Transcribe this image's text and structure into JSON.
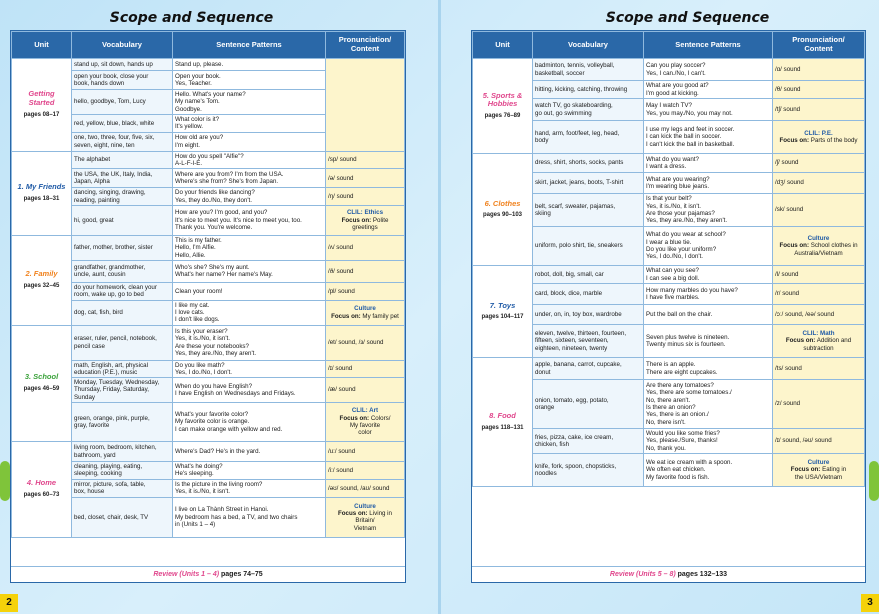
{
  "left": {
    "title": "Scope and Sequence",
    "headers": [
      "Unit",
      "Vocabulary",
      "Sentence Patterns",
      "Pronunciation/\nContent"
    ],
    "page_number": "2",
    "review": {
      "label": "Review (Units 1 – 4)",
      "pages": "pages 74–75"
    },
    "units": [
      {
        "name": "Getting\nStarted",
        "pages": "pages 08–17",
        "color": "#e0468c",
        "rows": [
          {
            "voc": "stand up, sit down, hands up",
            "sent": "Stand up, please.",
            "pron": null
          },
          {
            "voc": "open your book, close your\nbook, hands down",
            "sent": "Open your book.\nYes, Teacher.",
            "pron": null
          },
          {
            "voc": "hello, goodbye, Tom, Lucy",
            "sent": "Hello. What's your name?\nMy name's Tom.\nGoodbye.",
            "pron": null
          },
          {
            "voc": "red, yellow, blue, black, white",
            "sent": "What color is it?\nIt's yellow.",
            "pron": null
          },
          {
            "voc": "one, two, three, four, five, six,\nseven, eight, nine, ten",
            "sent": "How old are you?\nI'm eight.",
            "pron": null
          }
        ]
      },
      {
        "name": "1. My Friends",
        "pages": "pages 18–31",
        "color": "#1f5aa6",
        "rows": [
          {
            "voc": "The alphabet",
            "sent": "How do you spell \"Alfie\"?\nA-L-F-I-E.",
            "pron": "/sp/ sound"
          },
          {
            "voc": "the USA, the UK, Italy, India,\nJapan, Alpha",
            "sent": "Where are you from?     I'm from the USA.\nWhere's she from?       She's from Japan.",
            "pron": "/ə/ sound"
          },
          {
            "voc": "dancing, singing, drawing,\nreading, painting",
            "sent": "Do your friends like dancing?\nYes, they do./No, they don't.",
            "pron": "/ŋ/ sound"
          },
          {
            "voc": "hi, good, great",
            "sent": "How are you?                 I'm good, and you?\nIt's nice to meet you.      It's nice to meet you, too.\nThank you.                     You're welcome.",
            "pron": {
              "k1": "CLIL: Ethics",
              "k2": "Focus on:",
              "t": "Polite\ngreetings"
            }
          }
        ]
      },
      {
        "name": "2. Family",
        "pages": "pages 32–45",
        "color": "#f0821e",
        "rows": [
          {
            "voc": "father, mother, brother, sister",
            "sent": "This is my father.\nHello, I'm Alfie.\nHello, Allie.",
            "pron": "/ʌ/ sound"
          },
          {
            "voc": "grandfather, grandmother,\nuncle, aunt, cousin",
            "sent": "Who's she?                 She's my aunt.\nWhat's her name?       Her name's May.",
            "pron": "/ð/ sound"
          },
          {
            "voc": "do your homework, clean your\nroom, wake up, go to bed",
            "sent": "Clean your room!",
            "pron": "/pl/ sound"
          },
          {
            "voc": "dog, cat, fish, bird",
            "sent": "I like my cat.\nI love cats.\nI don't like dogs.",
            "pron": {
              "k1": "Culture",
              "k2": "Focus on:",
              "t": "My family pet"
            }
          }
        ]
      },
      {
        "name": "3. School",
        "pages": "pages 46–59",
        "color": "#3aa23a",
        "rows": [
          {
            "voc": "eraser, ruler, pencil, notebook,\npencil case",
            "sent": "Is this your eraser?\nYes, it is./No, it isn't.\nAre these your notebooks?\nYes, they are./No, they aren't.",
            "pron": "/et/ sound, /ɜ/ sound"
          },
          {
            "voc": "math, English, art, physical\neducation (P.E.), music",
            "sent": "Do you like math?\nYes, I do./No, I don't.",
            "pron": "/ɪ/ sound"
          },
          {
            "voc": "Monday, Tuesday, Wednesday,\nThursday, Friday, Saturday,\nSunday",
            "sent": "When do you have English?\nI have English on Wednesdays and Fridays.",
            "pron": "/æ/ sound"
          },
          {
            "voc": "green, orange, pink, purple,\ngray, favorite",
            "sent": "What's your favorite color?\nMy favorite color is orange.\nI can make orange with yellow and red.",
            "pron": {
              "k1": "CLIL: Art",
              "k2": "Focus on:",
              "t": "Colors/\nMy favorite\ncolor"
            }
          }
        ]
      },
      {
        "name": "4. Home",
        "pages": "pages 60–73",
        "color": "#e0468c",
        "rows": [
          {
            "voc": "living room, bedroom, kitchen,\nbathroom, yard",
            "sent": "Where's Dad?              He's in the yard.",
            "pron": "/u:/ sound"
          },
          {
            "voc": "cleaning, playing, eating,\nsleeping, cooking",
            "sent": "What's he doing?\nHe's sleeping.",
            "pron": "/i:/ sound"
          },
          {
            "voc": "mirror, picture, sofa, table,\nbox, house",
            "sent": "Is the picture in the living room?\nYes, it is./No, it isn't.",
            "pron": "/əʊ/ sound, /aʊ/ sound"
          },
          {
            "voc": "bed, closet, chair, desk, TV",
            "sent": "I live on La Thành Street in Hanoi.\nMy bedroom has a bed, a TV, and two chairs\nin (Units 1 – 4)",
            "pron": {
              "k1": "Culture",
              "k2": "Focus on:",
              "t": "Living in\nBritain/\nVietnam"
            }
          }
        ]
      }
    ]
  },
  "right": {
    "title": "Scope and Sequence",
    "headers": [
      "Unit",
      "Vocabulary",
      "Sentence Patterns",
      "Pronunciation/\nContent"
    ],
    "page_number": "3",
    "review": {
      "label": "Review (Units 5 – 8)",
      "pages": "pages 132–133"
    },
    "units": [
      {
        "name": "5. Sports &\nHobbies",
        "pages": "pages 76–89",
        "color": "#e0468c",
        "rows": [
          {
            "voc": "badminton, tennis, volleyball,\nbasketball, soccer",
            "sent": "Can you play soccer?\nYes, I can./No, I can't.",
            "pron": "/ɑ/ sound"
          },
          {
            "voc": "hitting, kicking, catching, throwing",
            "sent": "What are you good at?\nI'm good at kicking.",
            "pron": "/θ/ sound"
          },
          {
            "voc": "watch TV, go skateboarding,\ngo out, go swimming",
            "sent": "May I watch TV?\nYes, you may./No, you may not.",
            "pron": "/tʃ/ sound"
          },
          {
            "voc": "hand, arm, foot/feet, leg, head,\nbody",
            "sent": "I use my legs and feet in soccer.\nI can kick the ball in soccer.\nI can't kick the ball in basketball.",
            "pron": {
              "k1": "CLIL: P.E.",
              "k2": "Focus on:",
              "t": "Parts of the body"
            }
          }
        ]
      },
      {
        "name": "6. Clothes",
        "pages": "pages 90–103",
        "color": "#f0821e",
        "rows": [
          {
            "voc": "dress, shirt, shorts, socks, pants",
            "sent": "What do you want?\nI want a dress.",
            "pron": "/ʃ/ sound"
          },
          {
            "voc": "skirt, jacket, jeans, boots, T-shirt",
            "sent": "What are you wearing?\nI'm wearing blue jeans.",
            "pron": "/dʒ/ sound"
          },
          {
            "voc": "belt, scarf, sweater, pajamas,\nskiing",
            "sent": "Is that your belt?\nYes, it is./No, it isn't.\nAre those your pajamas?\nYes, they are./No, they aren't.",
            "pron": "/sk/ sound"
          },
          {
            "voc": "uniform, polo shirt, tie, sneakers",
            "sent": "What do you wear at school?\nI wear a blue tie.\nDo you like your uniform?\nYes, I do./No, I don't.",
            "pron": {
              "k1": "Culture",
              "k2": "Focus on:",
              "t": "School clothes in\nAustralia/Vietnam"
            }
          }
        ]
      },
      {
        "name": "7. Toys",
        "pages": "pages 104–117",
        "color": "#1f5aa6",
        "rows": [
          {
            "voc": "robot, doll, big, small, car",
            "sent": "What can you see?\nI can see a big doll.",
            "pron": "/l/ sound"
          },
          {
            "voc": "card, block, dice, marble",
            "sent": "How many marbles do you have?\nI have five marbles.",
            "pron": "/r/ sound"
          },
          {
            "voc": "under, on, in, toy box, wardrobe",
            "sent": "Put the ball on the chair.",
            "pron": "/ɔː/ sound, /eə/ sound"
          },
          {
            "voc": "eleven, twelve, thirteen, fourteen,\nfifteen, sixteen, seventeen,\neighteen, nineteen, twenty",
            "sent": "Seven plus twelve is nineteen.\nTwenty minus six is fourteen.",
            "pron": {
              "k1": "CLIL: Math",
              "k2": "Focus on:",
              "t": "Addition and\nsubtraction"
            }
          }
        ]
      },
      {
        "name": "8. Food",
        "pages": "pages 118–131",
        "color": "#e0468c",
        "rows": [
          {
            "voc": "apple, banana, carrot, cupcake,\ndonut",
            "sent": "There is an apple.\nThere are eight cupcakes.",
            "pron": "/ts/ sound"
          },
          {
            "voc": "onion, tomato, egg, potato,\norange",
            "sent": "Are there any tomatoes?\nYes, there are some tomatoes./\nNo, there aren't.\nIs there an onion?\nYes, there is an onion./\nNo, there isn't.",
            "pron": "/z/ sound"
          },
          {
            "voc": "fries, pizza, cake, ice cream,\nchicken, fish",
            "sent": "Would you like some fries?\nYes, please./Sure, thanks!\nNo, thank you.",
            "pron": "/ɪ/ sound, /əʊ/ sound"
          },
          {
            "voc": "knife, fork, spoon, chopsticks,\nnoodles",
            "sent": "We eat ice cream with a spoon.\nWe often eat chicken.\nMy favorite food is fish.",
            "pron": {
              "k1": "Culture",
              "k2": "Focus on:",
              "t": "Eating in\nthe USA/Vietnam"
            }
          }
        ]
      }
    ]
  }
}
